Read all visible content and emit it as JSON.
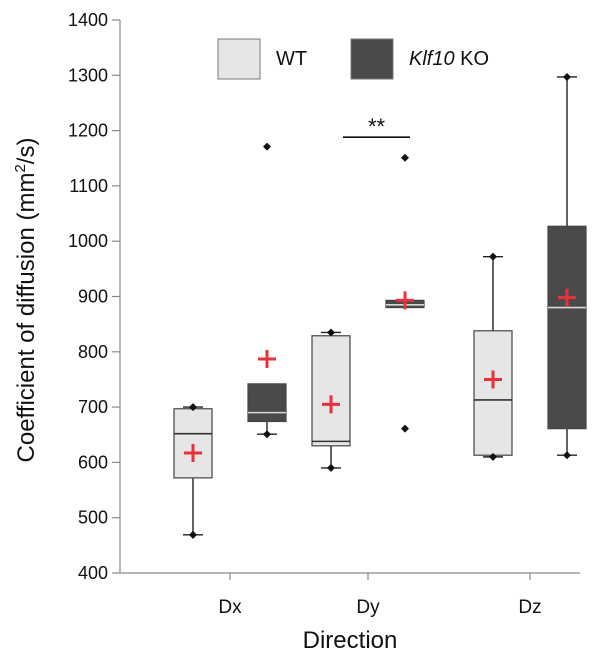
{
  "chart_data": {
    "type": "box",
    "xlabel": "Direction",
    "ylabel": "Coefficient of diffusion (mm²/s)",
    "ylabel_parts": {
      "main": "Coefficient of diffusion (mm",
      "sup": "2",
      "tail": "/s)"
    },
    "ylim": [
      400,
      1400
    ],
    "yticks": [
      400,
      500,
      600,
      700,
      800,
      900,
      1000,
      1100,
      1200,
      1300,
      1400
    ],
    "categories": [
      "Dx",
      "Dy",
      "Dz"
    ],
    "legend_position": "top",
    "series": [
      {
        "name": "WT",
        "legend_parts": {
          "italic": "",
          "plain": "WT"
        },
        "color": "#e6e6e6",
        "boxes": [
          {
            "category": "Dx",
            "whisker_low": 469,
            "q1": 572,
            "median": 652,
            "q3": 697,
            "whisker_high": 700,
            "mean": 617,
            "outliers": [
              469,
              700
            ]
          },
          {
            "category": "Dy",
            "whisker_low": 590,
            "q1": 630,
            "median": 638,
            "q3": 829,
            "whisker_high": 835,
            "mean": 705,
            "outliers": [
              590,
              835
            ]
          },
          {
            "category": "Dz",
            "whisker_low": 610,
            "q1": 613,
            "median": 713,
            "q3": 838,
            "whisker_high": 972,
            "mean": 750,
            "outliers": [
              610,
              972
            ]
          }
        ]
      },
      {
        "name": "Klf10 KO",
        "legend_parts": {
          "italic": "Klf10",
          "plain": " KO"
        },
        "color": "#4a4a4a",
        "boxes": [
          {
            "category": "Dx",
            "whisker_low": 651,
            "q1": 674,
            "median": 690,
            "q3": 742,
            "whisker_high": 742,
            "mean": 787,
            "outliers": [
              651,
              1171
            ]
          },
          {
            "category": "Dy",
            "whisker_low": 880,
            "q1": 880,
            "median": 885,
            "q3": 893,
            "whisker_high": 893,
            "mean": 893,
            "outliers": [
              661,
              1151
            ]
          },
          {
            "category": "Dz",
            "whisker_low": 613,
            "q1": 661,
            "median": 880,
            "q3": 1027,
            "whisker_high": 1297,
            "mean": 898,
            "outliers": [
              613,
              1297
            ]
          }
        ]
      }
    ],
    "annotations": [
      {
        "text": "**",
        "category": "Dy",
        "y": 1188
      }
    ],
    "mean_marker_color": "#e8313a"
  }
}
